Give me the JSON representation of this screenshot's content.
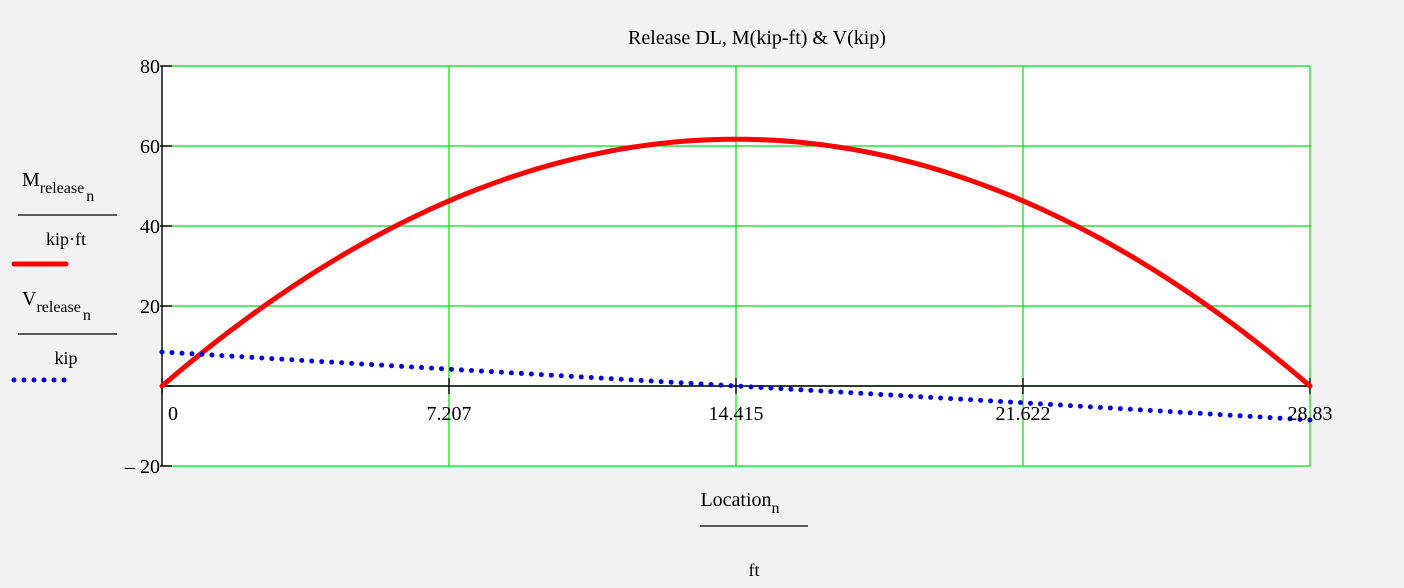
{
  "chart_data": {
    "type": "line",
    "title": "Release DL, M(kip-ft) & V(kip)",
    "xlabel": {
      "main": "Location",
      "sub": "n",
      "denominator": "ft"
    },
    "xlim": [
      0,
      28.83
    ],
    "ylim": [
      -20,
      80
    ],
    "x_ticks": [
      0,
      7.207,
      14.415,
      21.622,
      28.83
    ],
    "x_tick_labels": [
      "0",
      "7.207",
      "14.415",
      "21.622",
      "28.83"
    ],
    "y_ticks": [
      -20,
      0,
      20,
      40,
      60,
      80
    ],
    "y_tick_labels": [
      "– 20",
      "",
      "20",
      "40",
      "60",
      "80"
    ],
    "grid": true,
    "grid_color": "#00e000",
    "series": [
      {
        "label": {
          "main": "M",
          "sub": "release",
          "subsub": "n",
          "denominator": "kip·ft"
        },
        "style": "solid",
        "color": "#ff0000",
        "x": [
          0,
          3.604,
          7.207,
          10.811,
          14.415,
          18.019,
          21.622,
          25.226,
          28.83
        ],
        "y": [
          0,
          27,
          46.3,
          57.8,
          61.7,
          57.8,
          46.3,
          27,
          0
        ]
      },
      {
        "label": {
          "main": "V",
          "sub": "release",
          "subsub": "n",
          "denominator": "kip"
        },
        "style": "dotted",
        "color": "#0000e0",
        "x": [
          0,
          7.207,
          14.415,
          21.622,
          28.83
        ],
        "y": [
          8.5,
          4.2,
          0,
          -4.2,
          -8.5
        ]
      }
    ]
  }
}
